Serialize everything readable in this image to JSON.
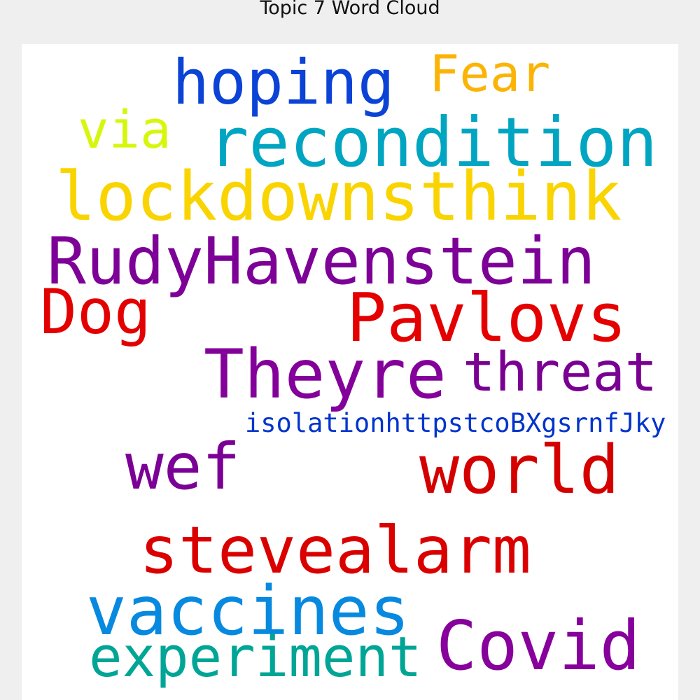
{
  "title": "Topic 7 Word Cloud",
  "words": [
    {
      "key": "hoping",
      "text": "hoping",
      "color": "#0b43d6"
    },
    {
      "key": "fear",
      "text": "Fear",
      "color": "#fbb405"
    },
    {
      "key": "via",
      "text": "via",
      "color": "#d6f70b"
    },
    {
      "key": "recondition",
      "text": "recondition",
      "color": "#00a5c1"
    },
    {
      "key": "lockdownsthink",
      "text": "lockdownsthink",
      "color": "#f9d400"
    },
    {
      "key": "rudyhavenstein",
      "text": "RudyHavenstein",
      "color": "#7d0097"
    },
    {
      "key": "dog",
      "text": "Dog",
      "color": "#e20000"
    },
    {
      "key": "pavlovs",
      "text": "Pavlovs",
      "color": "#e40000"
    },
    {
      "key": "theyre",
      "text": "Theyre",
      "color": "#84009a"
    },
    {
      "key": "threat",
      "text": "threat",
      "color": "#7a0092"
    },
    {
      "key": "isolation",
      "text": "isolationhttpstcoBXgsrnfJky",
      "color": "#0034cc"
    },
    {
      "key": "wef",
      "text": "wef",
      "color": "#7b0095"
    },
    {
      "key": "world",
      "text": "world",
      "color": "#d40000"
    },
    {
      "key": "stevealarm",
      "text": "stevealarm",
      "color": "#da0000"
    },
    {
      "key": "vaccines",
      "text": "vaccines",
      "color": "#0789e0"
    },
    {
      "key": "experiment",
      "text": "experiment",
      "color": "#00a596"
    },
    {
      "key": "covid",
      "text": "Covid",
      "color": "#87009c"
    }
  ]
}
